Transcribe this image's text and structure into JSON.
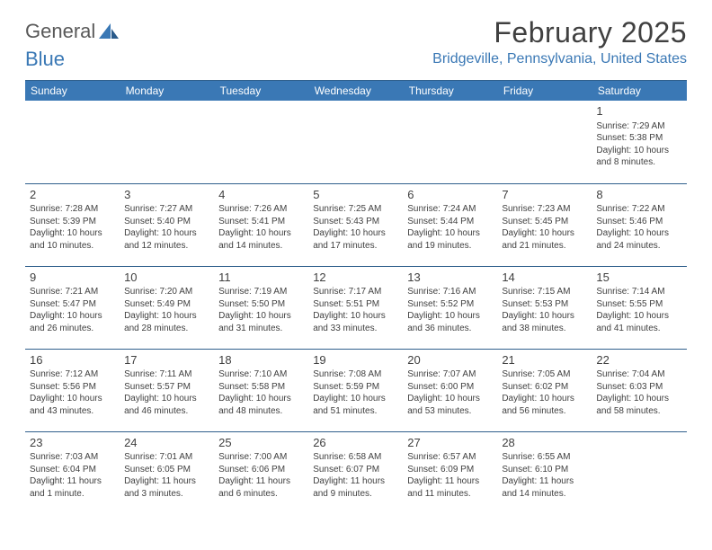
{
  "logo": {
    "text_a": "General",
    "text_b": "Blue",
    "accent": "#3a78b5"
  },
  "header": {
    "title": "February 2025",
    "location": "Bridgeville, Pennsylvania, United States",
    "title_color": "#404040",
    "location_color": "#3a78b5"
  },
  "calendar": {
    "header_bg": "#3a78b5",
    "header_fg": "#ffffff",
    "rule_color": "#2f5f8c",
    "text_color": "#3f3f3f",
    "daynames": [
      "Sunday",
      "Monday",
      "Tuesday",
      "Wednesday",
      "Thursday",
      "Friday",
      "Saturday"
    ],
    "weeks": [
      [
        null,
        null,
        null,
        null,
        null,
        null,
        {
          "n": "1",
          "sr": "Sunrise: 7:29 AM",
          "ss": "Sunset: 5:38 PM",
          "dl": "Daylight: 10 hours and 8 minutes."
        }
      ],
      [
        {
          "n": "2",
          "sr": "Sunrise: 7:28 AM",
          "ss": "Sunset: 5:39 PM",
          "dl": "Daylight: 10 hours and 10 minutes."
        },
        {
          "n": "3",
          "sr": "Sunrise: 7:27 AM",
          "ss": "Sunset: 5:40 PM",
          "dl": "Daylight: 10 hours and 12 minutes."
        },
        {
          "n": "4",
          "sr": "Sunrise: 7:26 AM",
          "ss": "Sunset: 5:41 PM",
          "dl": "Daylight: 10 hours and 14 minutes."
        },
        {
          "n": "5",
          "sr": "Sunrise: 7:25 AM",
          "ss": "Sunset: 5:43 PM",
          "dl": "Daylight: 10 hours and 17 minutes."
        },
        {
          "n": "6",
          "sr": "Sunrise: 7:24 AM",
          "ss": "Sunset: 5:44 PM",
          "dl": "Daylight: 10 hours and 19 minutes."
        },
        {
          "n": "7",
          "sr": "Sunrise: 7:23 AM",
          "ss": "Sunset: 5:45 PM",
          "dl": "Daylight: 10 hours and 21 minutes."
        },
        {
          "n": "8",
          "sr": "Sunrise: 7:22 AM",
          "ss": "Sunset: 5:46 PM",
          "dl": "Daylight: 10 hours and 24 minutes."
        }
      ],
      [
        {
          "n": "9",
          "sr": "Sunrise: 7:21 AM",
          "ss": "Sunset: 5:47 PM",
          "dl": "Daylight: 10 hours and 26 minutes."
        },
        {
          "n": "10",
          "sr": "Sunrise: 7:20 AM",
          "ss": "Sunset: 5:49 PM",
          "dl": "Daylight: 10 hours and 28 minutes."
        },
        {
          "n": "11",
          "sr": "Sunrise: 7:19 AM",
          "ss": "Sunset: 5:50 PM",
          "dl": "Daylight: 10 hours and 31 minutes."
        },
        {
          "n": "12",
          "sr": "Sunrise: 7:17 AM",
          "ss": "Sunset: 5:51 PM",
          "dl": "Daylight: 10 hours and 33 minutes."
        },
        {
          "n": "13",
          "sr": "Sunrise: 7:16 AM",
          "ss": "Sunset: 5:52 PM",
          "dl": "Daylight: 10 hours and 36 minutes."
        },
        {
          "n": "14",
          "sr": "Sunrise: 7:15 AM",
          "ss": "Sunset: 5:53 PM",
          "dl": "Daylight: 10 hours and 38 minutes."
        },
        {
          "n": "15",
          "sr": "Sunrise: 7:14 AM",
          "ss": "Sunset: 5:55 PM",
          "dl": "Daylight: 10 hours and 41 minutes."
        }
      ],
      [
        {
          "n": "16",
          "sr": "Sunrise: 7:12 AM",
          "ss": "Sunset: 5:56 PM",
          "dl": "Daylight: 10 hours and 43 minutes."
        },
        {
          "n": "17",
          "sr": "Sunrise: 7:11 AM",
          "ss": "Sunset: 5:57 PM",
          "dl": "Daylight: 10 hours and 46 minutes."
        },
        {
          "n": "18",
          "sr": "Sunrise: 7:10 AM",
          "ss": "Sunset: 5:58 PM",
          "dl": "Daylight: 10 hours and 48 minutes."
        },
        {
          "n": "19",
          "sr": "Sunrise: 7:08 AM",
          "ss": "Sunset: 5:59 PM",
          "dl": "Daylight: 10 hours and 51 minutes."
        },
        {
          "n": "20",
          "sr": "Sunrise: 7:07 AM",
          "ss": "Sunset: 6:00 PM",
          "dl": "Daylight: 10 hours and 53 minutes."
        },
        {
          "n": "21",
          "sr": "Sunrise: 7:05 AM",
          "ss": "Sunset: 6:02 PM",
          "dl": "Daylight: 10 hours and 56 minutes."
        },
        {
          "n": "22",
          "sr": "Sunrise: 7:04 AM",
          "ss": "Sunset: 6:03 PM",
          "dl": "Daylight: 10 hours and 58 minutes."
        }
      ],
      [
        {
          "n": "23",
          "sr": "Sunrise: 7:03 AM",
          "ss": "Sunset: 6:04 PM",
          "dl": "Daylight: 11 hours and 1 minute."
        },
        {
          "n": "24",
          "sr": "Sunrise: 7:01 AM",
          "ss": "Sunset: 6:05 PM",
          "dl": "Daylight: 11 hours and 3 minutes."
        },
        {
          "n": "25",
          "sr": "Sunrise: 7:00 AM",
          "ss": "Sunset: 6:06 PM",
          "dl": "Daylight: 11 hours and 6 minutes."
        },
        {
          "n": "26",
          "sr": "Sunrise: 6:58 AM",
          "ss": "Sunset: 6:07 PM",
          "dl": "Daylight: 11 hours and 9 minutes."
        },
        {
          "n": "27",
          "sr": "Sunrise: 6:57 AM",
          "ss": "Sunset: 6:09 PM",
          "dl": "Daylight: 11 hours and 11 minutes."
        },
        {
          "n": "28",
          "sr": "Sunrise: 6:55 AM",
          "ss": "Sunset: 6:10 PM",
          "dl": "Daylight: 11 hours and 14 minutes."
        },
        null
      ]
    ]
  }
}
